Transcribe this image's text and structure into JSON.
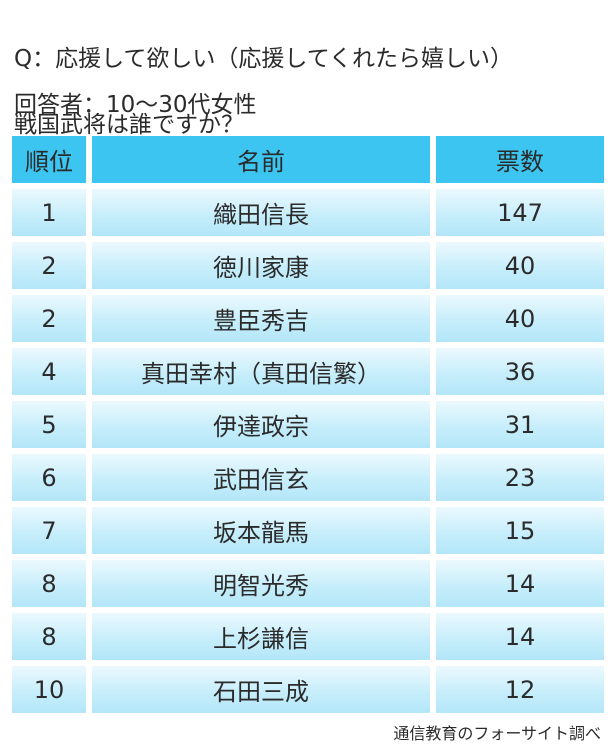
{
  "question": {
    "line1": "Q：応援して欲しい（応援してくれたら嬉しい）",
    "line2": "戦国武将は誰ですか？"
  },
  "respondents": "回答者：10〜30代女性",
  "source": "通信教育のフォーサイト調べ",
  "chart_data": {
    "type": "table",
    "columns": [
      "順位",
      "名前",
      "票数"
    ],
    "rows": [
      {
        "rank": "1",
        "name": "織田信長",
        "votes": "147"
      },
      {
        "rank": "2",
        "name": "徳川家康",
        "votes": "40"
      },
      {
        "rank": "2",
        "name": "豊臣秀吉",
        "votes": "40"
      },
      {
        "rank": "4",
        "name": "真田幸村（真田信繁）",
        "votes": "36"
      },
      {
        "rank": "5",
        "name": "伊達政宗",
        "votes": "31"
      },
      {
        "rank": "6",
        "name": "武田信玄",
        "votes": "23"
      },
      {
        "rank": "7",
        "name": "坂本龍馬",
        "votes": "15"
      },
      {
        "rank": "8",
        "name": "明智光秀",
        "votes": "14"
      },
      {
        "rank": "8",
        "name": "上杉謙信",
        "votes": "14"
      },
      {
        "rank": "10",
        "name": "石田三成",
        "votes": "12"
      }
    ],
    "colors": {
      "header": "#3cc5f0",
      "cell_light": "#ecf9fe",
      "cell_dark": "#b3e6f8"
    }
  }
}
